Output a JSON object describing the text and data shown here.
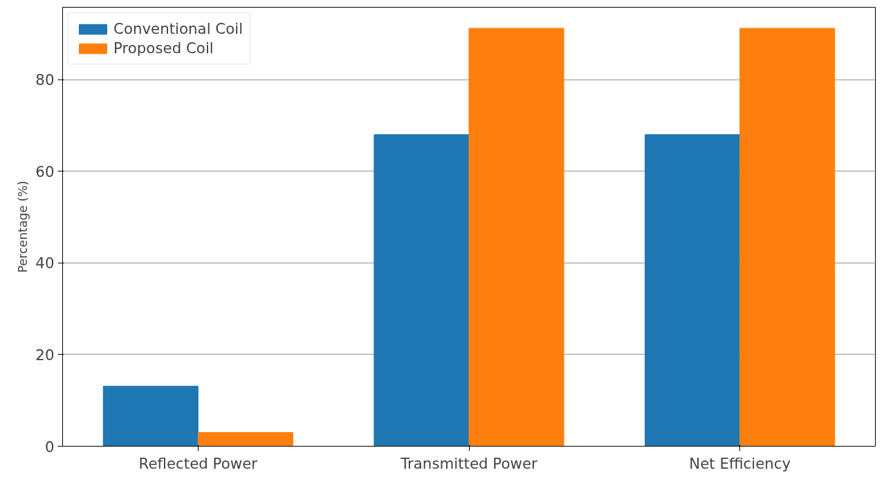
{
  "chart_data": {
    "type": "bar",
    "ylabel": "Percentage (%)",
    "categories": [
      "Reflected Power",
      "Transmitted Power",
      "Net Efficiency"
    ],
    "series": [
      {
        "name": "Conventional Coil",
        "color": "#1f77b4",
        "values": [
          13.1,
          68.0,
          68.0
        ]
      },
      {
        "name": "Proposed Coil",
        "color": "#ff7f0e",
        "values": [
          3.0,
          91.2,
          91.2
        ]
      }
    ],
    "ylim": [
      0,
      95.8
    ],
    "yticks": [
      0,
      20,
      40,
      60,
      80
    ],
    "grid": "y",
    "legend": "top left"
  }
}
